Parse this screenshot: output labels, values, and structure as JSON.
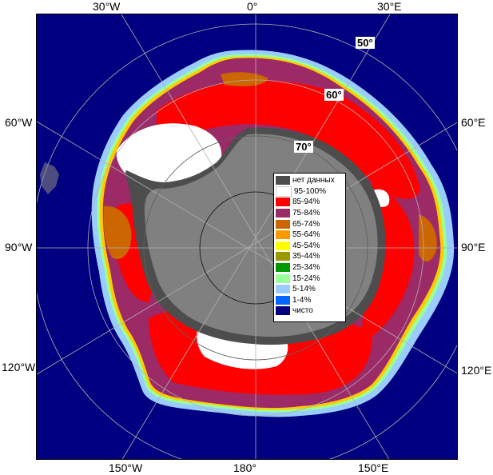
{
  "edge_labels": {
    "top": [
      "30°W",
      "0°",
      "30°E"
    ],
    "left": [
      "60°W",
      "90°W",
      "120°W"
    ],
    "right": [
      "60°E",
      "90°E",
      "120°E"
    ],
    "bottom": [
      "150°W",
      "180°",
      "150°E"
    ]
  },
  "lat_labels": [
    "50°",
    "60°",
    "70°"
  ],
  "legend": [
    {
      "label": "нет данных",
      "color": "#4d4d4d"
    },
    {
      "label": "95-100%",
      "color": "#ffffff"
    },
    {
      "label": "85-94%",
      "color": "#ff0000"
    },
    {
      "label": "75-84%",
      "color": "#9c2a66"
    },
    {
      "label": "65-74%",
      "color": "#cc6600"
    },
    {
      "label": "55-64%",
      "color": "#ff9900"
    },
    {
      "label": "45-54%",
      "color": "#ffff00"
    },
    {
      "label": "35-44%",
      "color": "#999900"
    },
    {
      "label": "25-34%",
      "color": "#009900"
    },
    {
      "label": "15-24%",
      "color": "#99ff99"
    },
    {
      "label": "5-14%",
      "color": "#99ccff"
    },
    {
      "label": "1-4%",
      "color": "#0066ff"
    },
    {
      "label": "чисто",
      "color": "#000080"
    }
  ],
  "colors": {
    "ocean": "#000080",
    "land": "#808080",
    "no_data": "#4d4d4d",
    "grid": "#b0b0b0"
  }
}
